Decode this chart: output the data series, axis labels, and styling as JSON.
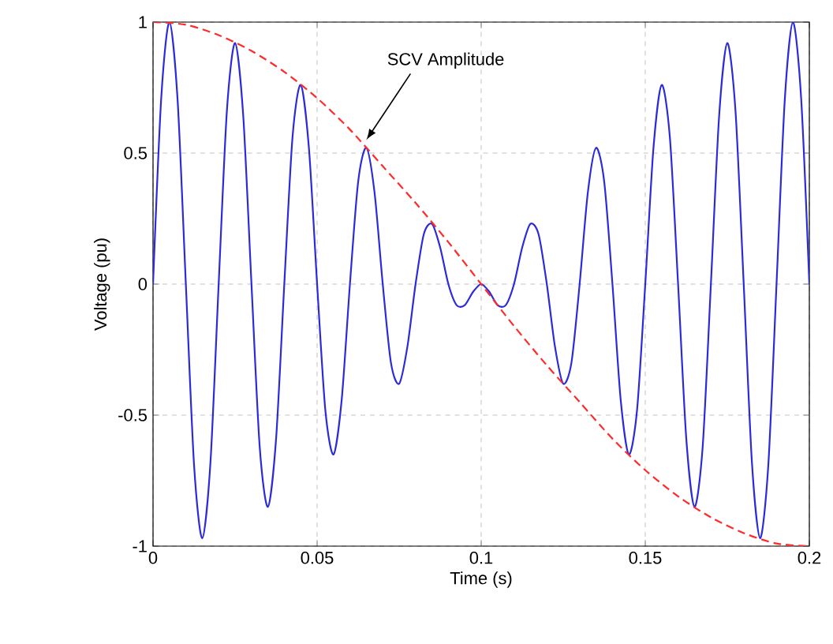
{
  "chart_data": {
    "type": "line",
    "xlabel": "Time (s)",
    "ylabel": "Voltage (pu)",
    "xlim": [
      0,
      0.2
    ],
    "ylim": [
      -1,
      1
    ],
    "xticks": [
      0,
      0.05,
      0.1,
      0.15,
      0.2
    ],
    "yticks": [
      -1,
      -0.5,
      0,
      0.5,
      1
    ],
    "grid": true,
    "marker": "none",
    "annotations": [
      {
        "text": "SCV Amplitude",
        "x": 0.065,
        "y": 0.55
      }
    ],
    "series": [
      {
        "color": "#2b2bdc",
        "line_style": "solid",
        "x": [
          0,
          0.0025,
          0.005,
          0.0075,
          0.01,
          0.0125,
          0.015,
          0.0175,
          0.02,
          0.0225,
          0.025,
          0.0275,
          0.03,
          0.0325,
          0.035,
          0.0375,
          0.04,
          0.0425,
          0.045,
          0.0475,
          0.05,
          0.0525,
          0.055,
          0.0575,
          0.06,
          0.0625,
          0.065,
          0.0675,
          0.07,
          0.0725,
          0.075,
          0.0775,
          0.08,
          0.0825,
          0.085,
          0.0875,
          0.09,
          0.0925,
          0.095,
          0.0975,
          0.1,
          0.1025,
          0.105,
          0.1075,
          0.11,
          0.1125,
          0.115,
          0.1175,
          0.12,
          0.1225,
          0.125,
          0.1275,
          0.13,
          0.1325,
          0.135,
          0.1375,
          0.14,
          0.1425,
          0.145,
          0.1475,
          0.15,
          0.1525,
          0.155,
          0.1575,
          0.16,
          0.1625,
          0.165,
          0.1675,
          0.17,
          0.1725,
          0.175,
          0.1775,
          0.18,
          0.1825,
          0.185,
          0.1875,
          0.19,
          0.1925,
          0.195,
          0.1975,
          0.2
        ],
        "values": [
          0,
          0.71,
          1.0,
          0.7,
          0,
          -0.69,
          -0.97,
          -0.68,
          0,
          0.66,
          0.92,
          0.64,
          0,
          -0.62,
          -0.85,
          -0.59,
          0,
          0.56,
          0.76,
          0.52,
          0,
          -0.48,
          -0.65,
          -0.44,
          0,
          0.39,
          0.52,
          0.35,
          0,
          -0.3,
          -0.38,
          -0.24,
          0,
          0.19,
          0.23,
          0.14,
          0,
          -0.08,
          -0.08,
          -0.03,
          0,
          -0.03,
          -0.08,
          -0.08,
          0,
          0.14,
          0.23,
          0.19,
          0,
          -0.24,
          -0.38,
          -0.3,
          0,
          0.35,
          0.52,
          0.39,
          0,
          -0.44,
          -0.65,
          -0.48,
          0,
          0.52,
          0.76,
          0.56,
          0,
          -0.59,
          -0.85,
          -0.62,
          0,
          0.64,
          0.92,
          0.66,
          0,
          -0.68,
          -0.97,
          -0.69,
          0,
          0.7,
          1.0,
          0.71,
          0
        ]
      },
      {
        "color": "#ff2a2a",
        "line_style": "dashed",
        "x": [
          0,
          0.01,
          0.02,
          0.03,
          0.04,
          0.05,
          0.06,
          0.07,
          0.08,
          0.09,
          0.1,
          0.11,
          0.12,
          0.13,
          0.14,
          0.15,
          0.16,
          0.17,
          0.18,
          0.19,
          0.2
        ],
        "values": [
          1,
          0.99,
          0.95,
          0.89,
          0.81,
          0.71,
          0.59,
          0.45,
          0.31,
          0.16,
          0,
          -0.16,
          -0.31,
          -0.45,
          -0.59,
          -0.71,
          -0.81,
          -0.89,
          -0.95,
          -0.99,
          -1
        ]
      }
    ]
  }
}
